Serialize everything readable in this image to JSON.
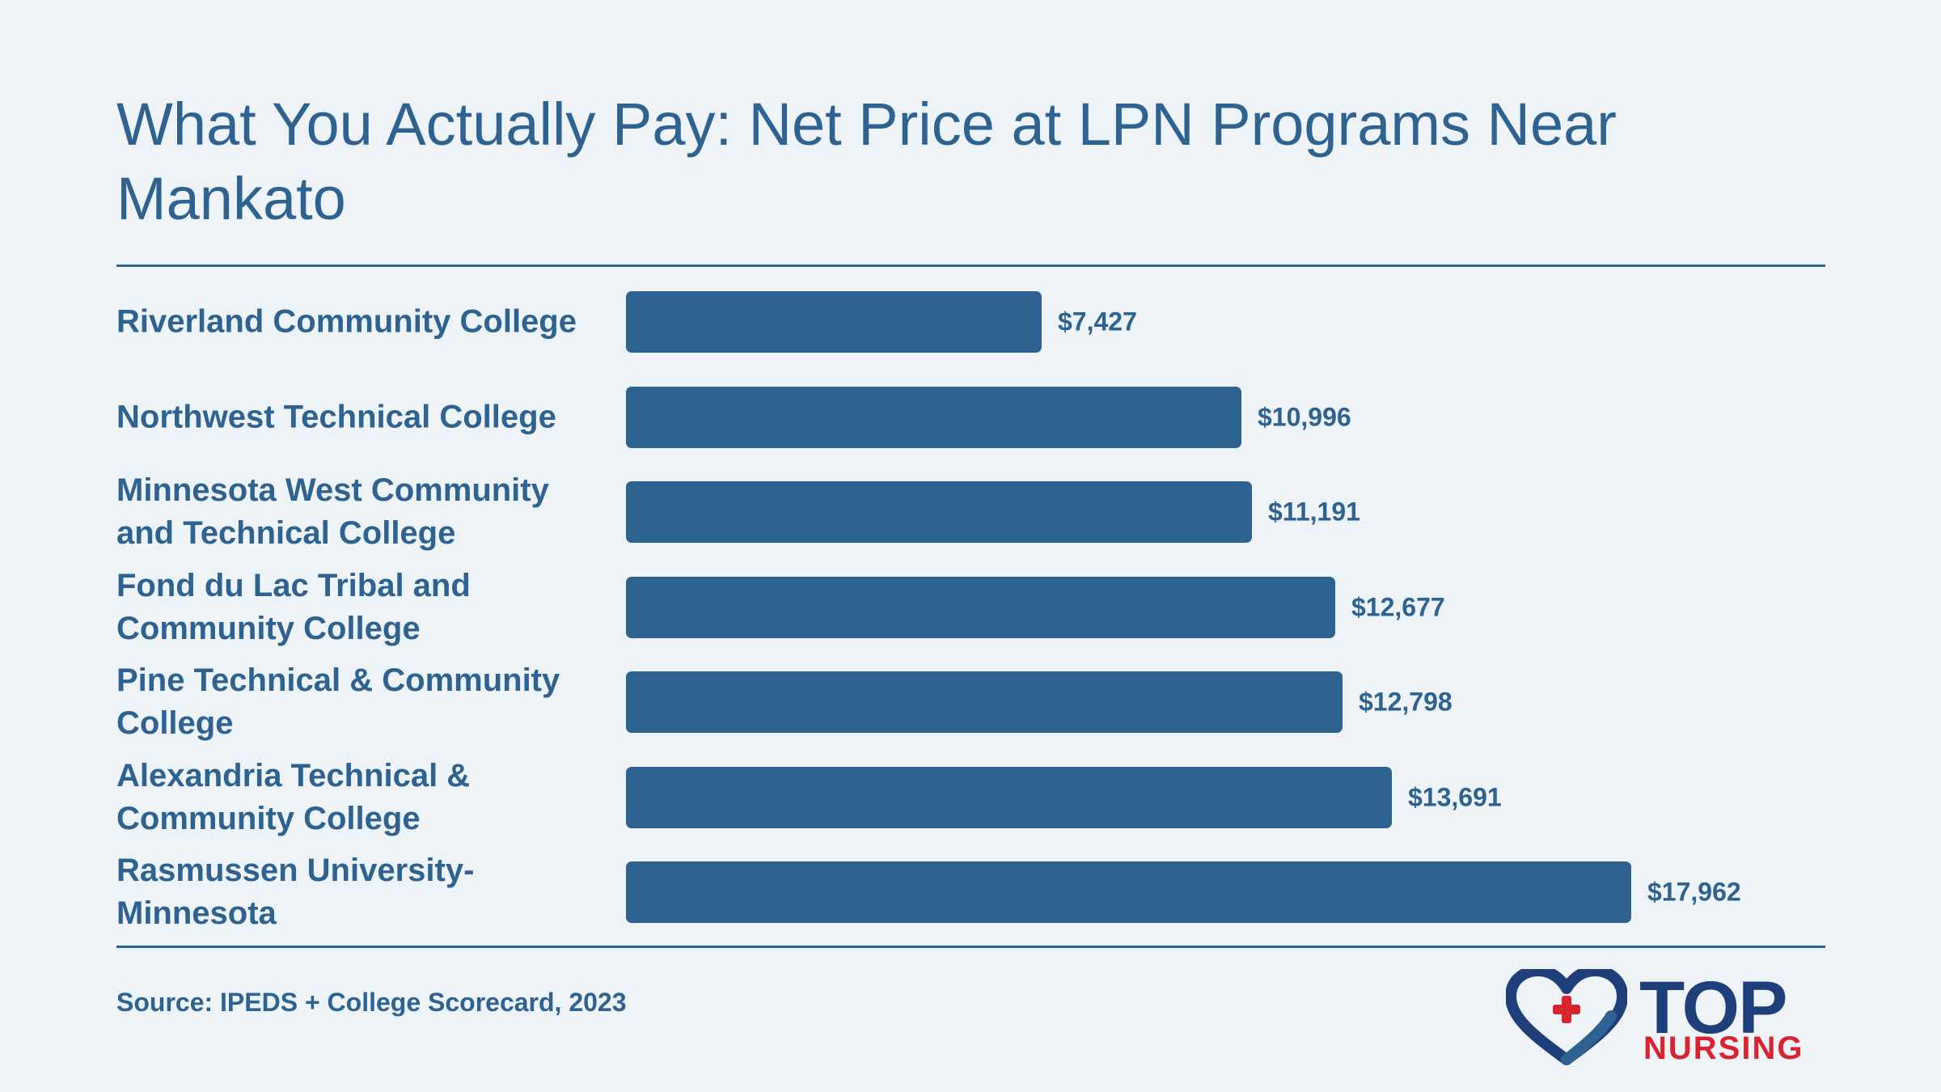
{
  "chart_data": {
    "type": "bar",
    "orientation": "horizontal",
    "title": "What You Actually Pay: Net Price at LPN Programs Near Mankato",
    "categories": [
      "Riverland Community College",
      "Northwest Technical College",
      "Minnesota West Community and Technical College",
      "Fond du Lac Tribal and Community College",
      "Pine Technical & Community College",
      "Alexandria Technical & Community College",
      "Rasmussen University-Minnesota"
    ],
    "values": [
      7427,
      10996,
      11191,
      12677,
      12798,
      13691,
      17962
    ],
    "value_labels": [
      "$7,427",
      "$10,996",
      "$11,191",
      "$12,677",
      "$12,798",
      "$13,691",
      "$17,962"
    ],
    "xlim": [
      0,
      17962
    ],
    "bar_color": "#2e6290",
    "grid": false,
    "legend": "none"
  },
  "source": "Source: IPEDS + College Scorecard, 2023",
  "logo": {
    "top": "TOP",
    "nursing": "NURSING",
    "colors": {
      "navy": "#1e3f7a",
      "red": "#d92430"
    }
  }
}
